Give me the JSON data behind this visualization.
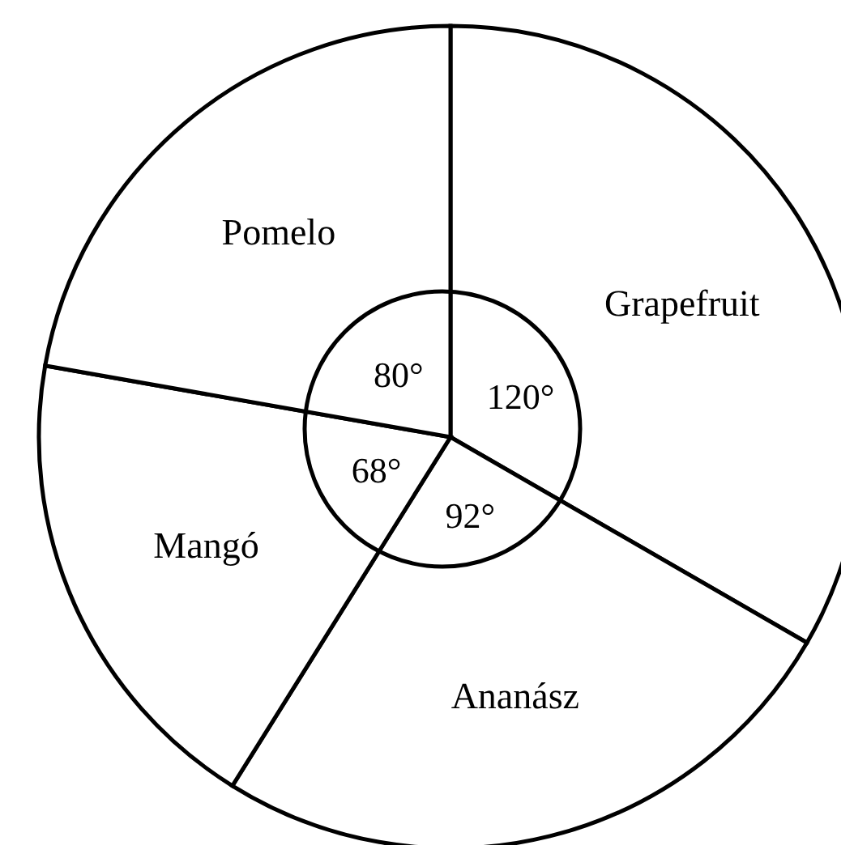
{
  "chart_data": {
    "type": "pie",
    "categories": [
      "Grapefruit",
      "Ananász",
      "Mangó",
      "Pomelo"
    ],
    "values": [
      120,
      92,
      68,
      80
    ],
    "value_labels": [
      "120°",
      "92°",
      "68°",
      "80°"
    ],
    "colors": [
      "#ffffff",
      "#ffffff",
      "#ffffff",
      "#ffffff"
    ]
  }
}
